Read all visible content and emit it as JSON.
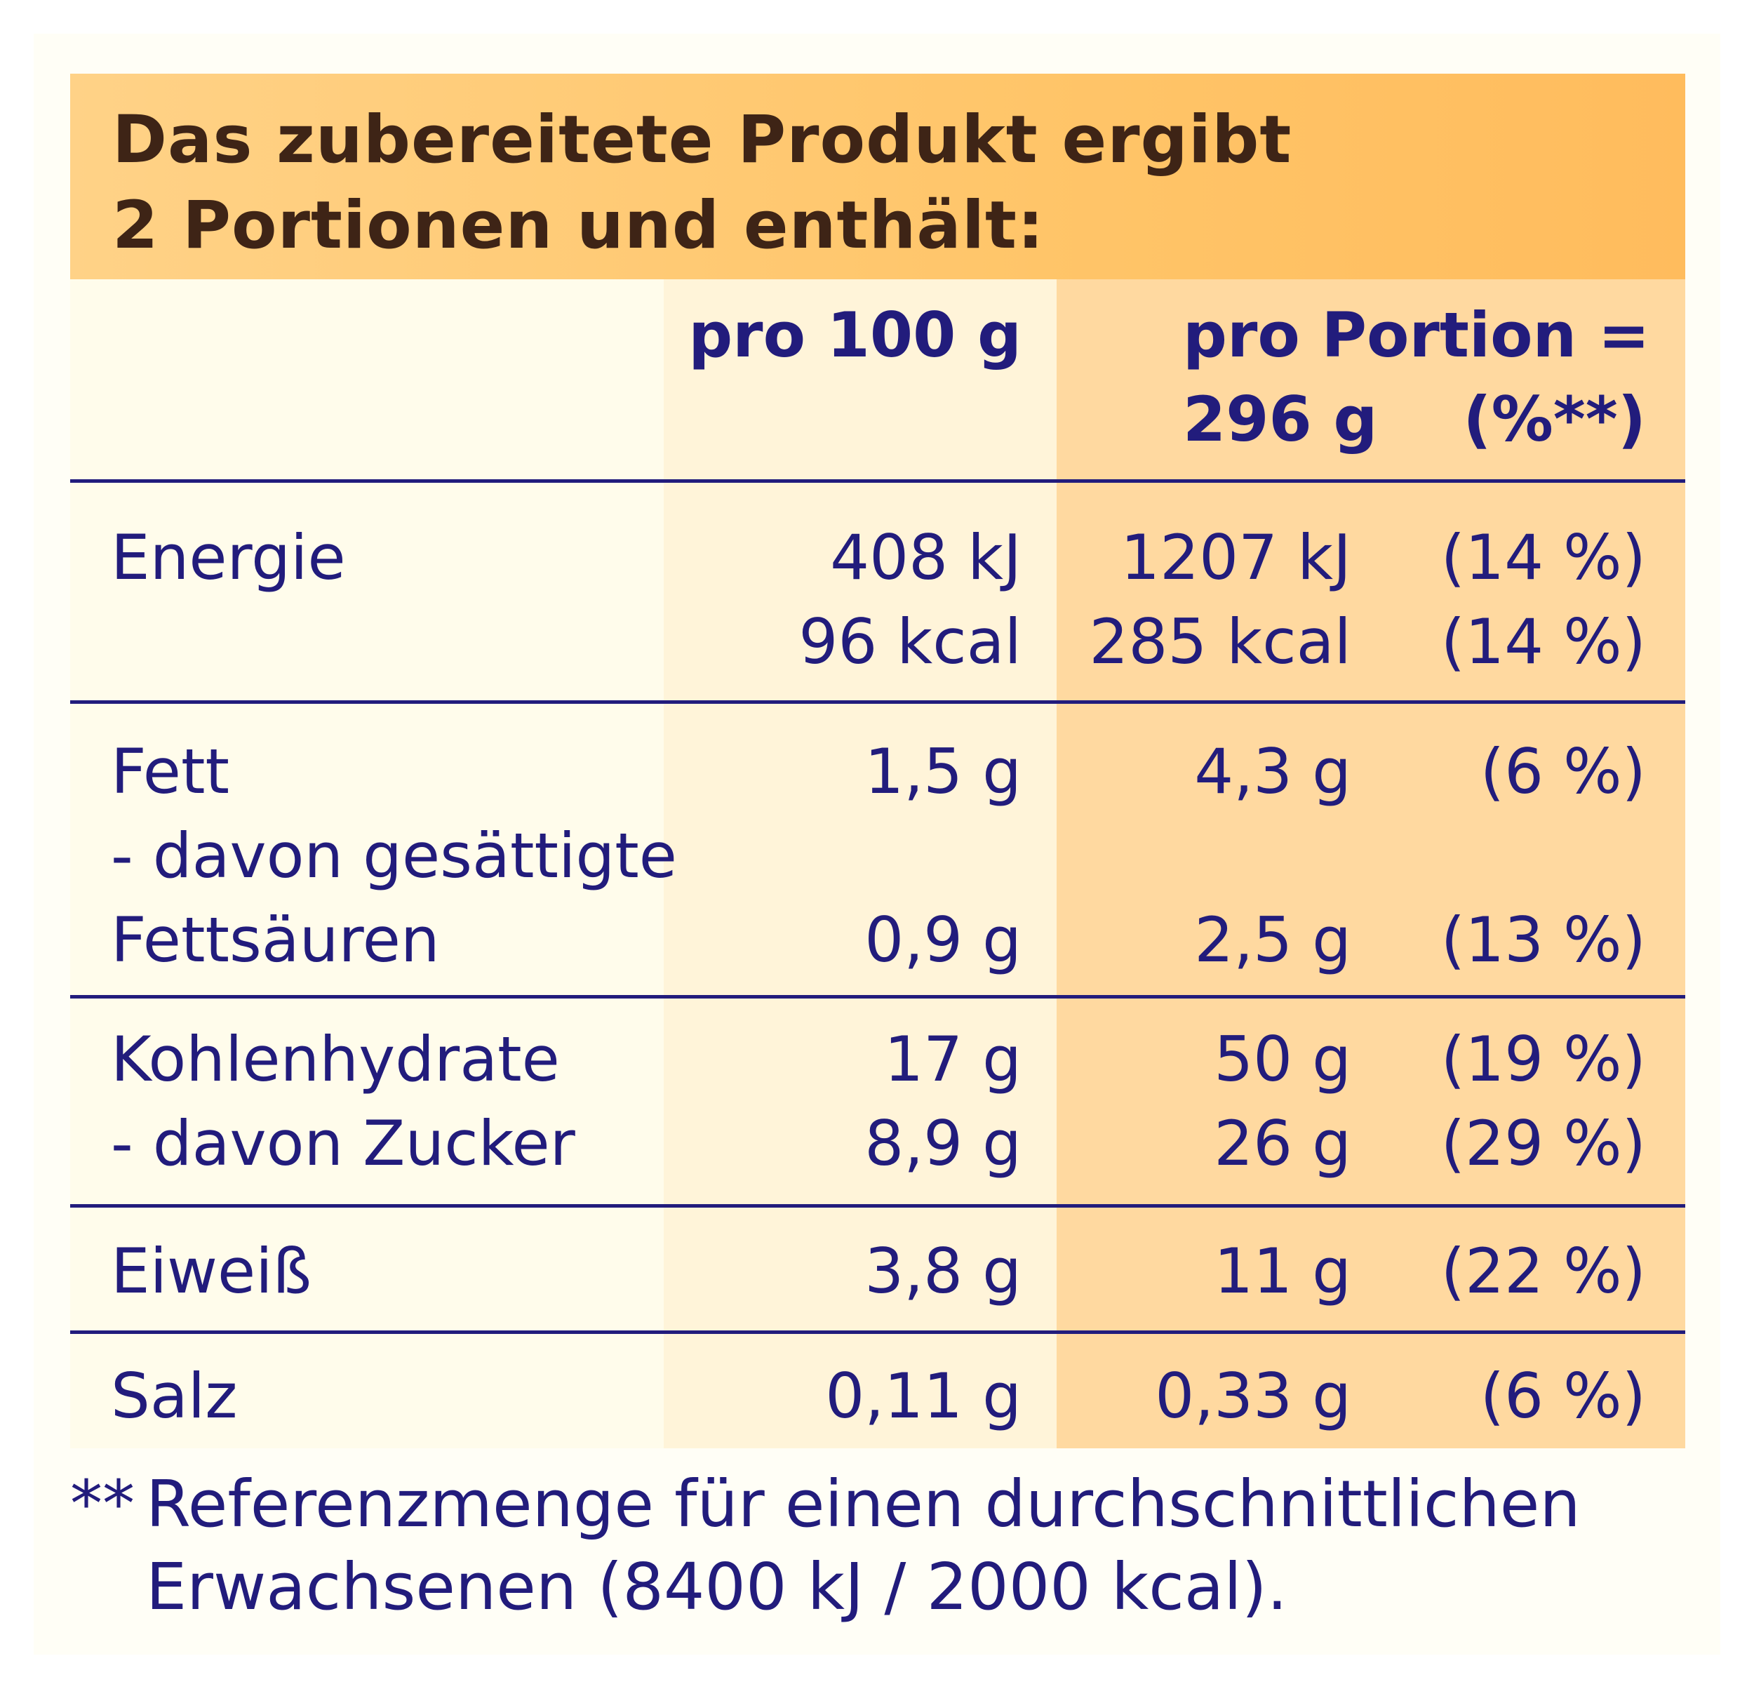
{
  "header": {
    "title": "Das zubereitete Produkt ergibt\n2 Portionen und enthält:"
  },
  "columns": {
    "per_100g": "pro 100 g",
    "per_portion": "pro Portion =\n296 g",
    "percent": "(%**)"
  },
  "rows": [
    {
      "label": "Energie",
      "per_100g": "408 kJ\n96 kcal",
      "per_portion": "1207 kJ\n285 kcal",
      "percent": "(14 %)\n(14 %)"
    },
    {
      "label": "Fett\n- davon gesättigte\nFettsäuren",
      "per_100g": "1,5 g\n\n0,9 g",
      "per_portion": "4,3 g\n\n2,5 g",
      "percent": "(6 %)\n\n(13 %)"
    },
    {
      "label": "Kohlenhydrate\n- davon Zucker",
      "per_100g": "17 g\n8,9 g",
      "per_portion": "50 g\n26 g",
      "percent": "(19 %)\n(29 %)"
    },
    {
      "label": "Eiweiß",
      "per_100g": "3,8 g",
      "per_portion": "11 g",
      "percent": "(22 %)"
    },
    {
      "label": "Salz",
      "per_100g": "0,11 g",
      "per_portion": "0,33 g",
      "percent": "(6 %)"
    }
  ],
  "footnote": {
    "mark": "**",
    "text": "Referenzmenge für einen durchschnittlichen\nErwachsenen (8400 kJ / 2000 kcal)."
  },
  "colors": {
    "text": "#221c7c",
    "header_text": "#3e2416",
    "header_bg": "#ffc569",
    "portion_bg": "#ffd9a0"
  }
}
